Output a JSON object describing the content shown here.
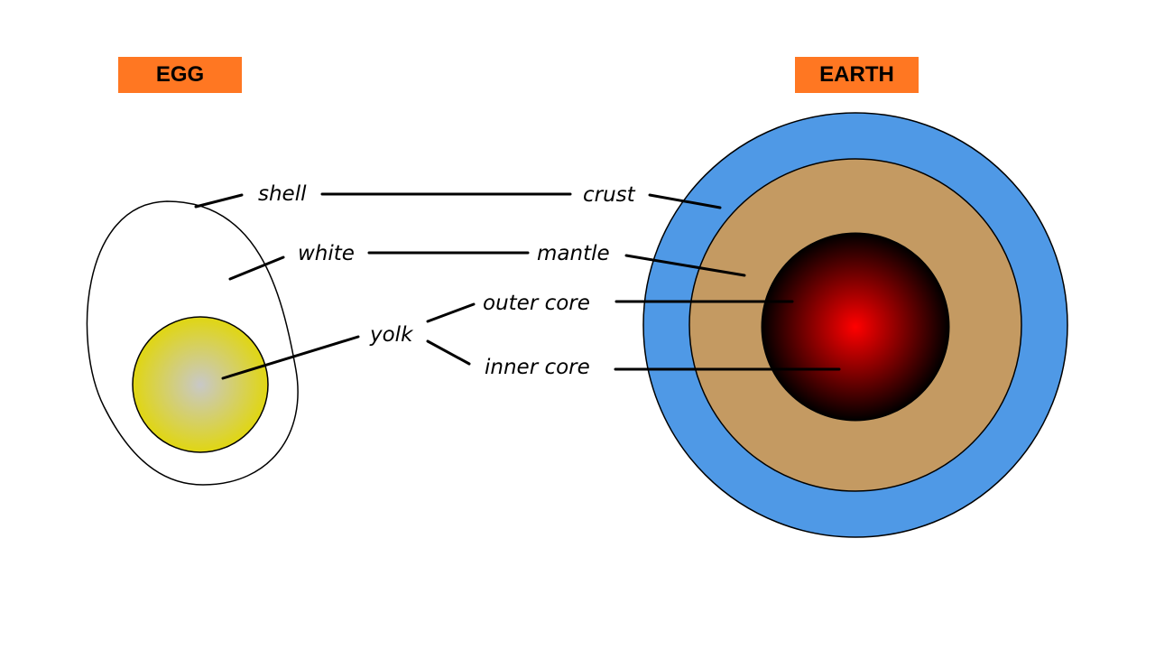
{
  "egg": {
    "title": "EGG",
    "labels": {
      "shell": "shell",
      "white": "white",
      "yolk": "yolk"
    }
  },
  "earth": {
    "title": "EARTH",
    "labels": {
      "crust": "crust",
      "mantle": "mantle",
      "outer_core": "outer core",
      "inner_core": "inner core"
    }
  },
  "colors": {
    "title_box": "#FF7722",
    "crust": "#4F99E6",
    "mantle": "#C49A62",
    "core_center": "#FF0000",
    "core_edge": "#000000",
    "yolk_edge": "#E0D612",
    "yolk_center": "#C8C8C8"
  }
}
